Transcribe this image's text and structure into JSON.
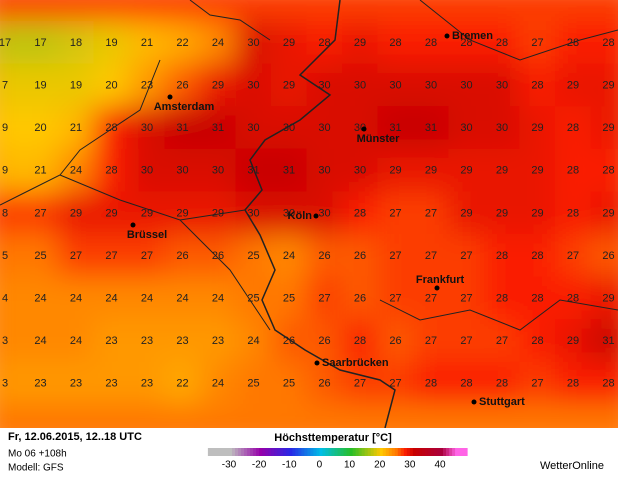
{
  "grid": {
    "rows": [
      [
        17,
        17,
        18,
        19,
        21,
        22,
        24,
        30,
        29,
        28,
        29,
        28,
        28,
        28,
        28,
        27,
        28,
        28
      ],
      [
        7,
        19,
        19,
        20,
        23,
        26,
        29,
        30,
        29,
        30,
        30,
        30,
        30,
        30,
        30,
        28,
        29,
        29
      ],
      [
        9,
        20,
        21,
        28,
        30,
        31,
        31,
        30,
        30,
        30,
        30,
        31,
        31,
        30,
        30,
        29,
        28,
        29
      ],
      [
        9,
        21,
        24,
        28,
        30,
        30,
        30,
        31,
        31,
        30,
        30,
        29,
        29,
        29,
        29,
        29,
        28,
        28
      ],
      [
        8,
        27,
        29,
        29,
        29,
        29,
        29,
        30,
        30,
        30,
        28,
        27,
        27,
        29,
        29,
        29,
        28,
        29
      ],
      [
        5,
        25,
        27,
        27,
        27,
        26,
        26,
        25,
        24,
        26,
        26,
        27,
        27,
        27,
        28,
        28,
        27,
        26
      ],
      [
        4,
        24,
        24,
        24,
        24,
        24,
        24,
        25,
        25,
        27,
        26,
        27,
        27,
        27,
        28,
        28,
        28,
        29
      ],
      [
        3,
        24,
        24,
        23,
        23,
        23,
        23,
        24,
        26,
        26,
        28,
        26,
        27,
        27,
        27,
        28,
        29,
        31
      ],
      [
        3,
        23,
        23,
        23,
        23,
        22,
        24,
        25,
        25,
        26,
        27,
        27,
        28,
        28,
        28,
        27,
        28,
        28
      ]
    ]
  },
  "cities": [
    "Bremen",
    "Amsterdam",
    "Münster",
    "Köln",
    "Brüssel",
    "Frankfurt",
    "Saarbrücken",
    "Stuttgart"
  ],
  "footer": {
    "date": "Fr, 12.06.2015, 12..18 UTC",
    "run": "Mo 06 +108h",
    "model": "Modell: GFS",
    "brand": "WetterOnline"
  },
  "legend": {
    "title": "Höchsttemperatur [°C]",
    "ticks": [
      -30,
      -20,
      -10,
      0,
      10,
      20,
      30,
      40
    ]
  }
}
